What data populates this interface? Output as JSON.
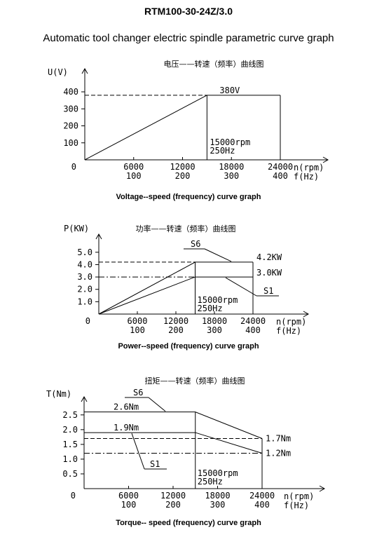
{
  "header": {
    "model": "RTM100-30-24Z/3.0",
    "subtitle": "Automatic tool changer electric spindle parametric curve graph"
  },
  "chart_data": [
    {
      "type": "line",
      "chinese_title": "电压——转速（频率）曲线图",
      "caption": "Voltage--speed (frequency) curve graph",
      "ylabel": "U(V)",
      "xlabel_rpm": "n(rpm)",
      "xlabel_hz": "f(Hz)",
      "origin_label": "0",
      "x_ticks_rpm": [
        "6000",
        "12000",
        "18000",
        "24000"
      ],
      "x_ticks_hz": [
        "100",
        "200",
        "300",
        "400"
      ],
      "y_ticks": [
        "100",
        "200",
        "300",
        "400"
      ],
      "xlim": [
        0,
        24000
      ],
      "ylim": [
        0,
        400
      ],
      "series": [
        {
          "x": [
            0,
            15000,
            24000
          ],
          "y": [
            0,
            380,
            380
          ]
        }
      ],
      "annotations": {
        "rated_voltage": "380V",
        "base_speed": "15000rpm",
        "base_freq": "250Hz"
      },
      "grid": false
    },
    {
      "type": "line",
      "chinese_title": "功率——转速（频率）曲线图",
      "caption": "Power--speed (frequency) curve graph",
      "ylabel": "P(KW)",
      "xlabel_rpm": "n(rpm)",
      "xlabel_hz": "f(Hz)",
      "origin_label": "0",
      "x_ticks_rpm": [
        "6000",
        "12000",
        "18000",
        "24000"
      ],
      "x_ticks_hz": [
        "100",
        "200",
        "300",
        "400"
      ],
      "y_ticks": [
        "1.0",
        "2.0",
        "3.0",
        "4.0",
        "5.0"
      ],
      "xlim": [
        0,
        24000
      ],
      "ylim": [
        0,
        5.5
      ],
      "series": [
        {
          "name": "S6",
          "x": [
            0,
            15000,
            24000
          ],
          "y": [
            0,
            4.2,
            4.2
          ]
        },
        {
          "name": "S1",
          "x": [
            0,
            15000,
            24000
          ],
          "y": [
            0,
            3.0,
            3.0
          ]
        }
      ],
      "annotations": {
        "s6_value": "4.2KW",
        "s1_value": "3.0KW",
        "base_speed": "15000rpm",
        "base_freq": "250Hz"
      },
      "grid": false
    },
    {
      "type": "line",
      "chinese_title": "扭矩——转速（频率）曲线图",
      "caption": "Torque-- speed (frequency) curve graph",
      "ylabel": "T(Nm)",
      "xlabel_rpm": "n(rpm)",
      "xlabel_hz": "f(Hz)",
      "origin_label": "0",
      "x_ticks_rpm": [
        "6000",
        "12000",
        "18000",
        "24000"
      ],
      "x_ticks_hz": [
        "100",
        "200",
        "300",
        "400"
      ],
      "y_ticks": [
        "0.5",
        "1.0",
        "1.5",
        "2.0",
        "2.5"
      ],
      "xlim": [
        0,
        24000
      ],
      "ylim": [
        0,
        2.9
      ],
      "series": [
        {
          "name": "S6",
          "x": [
            0,
            15000,
            24000
          ],
          "y": [
            2.6,
            2.6,
            1.7
          ]
        },
        {
          "name": "S1",
          "x": [
            0,
            15000,
            24000
          ],
          "y": [
            1.9,
            1.9,
            1.2
          ]
        }
      ],
      "annotations": {
        "s6_start": "2.6Nm",
        "s1_start": "1.9Nm",
        "s6_end": "1.7Nm",
        "s1_end": "1.2Nm",
        "base_speed": "15000rpm",
        "base_freq": "250Hz"
      },
      "grid": false
    }
  ]
}
